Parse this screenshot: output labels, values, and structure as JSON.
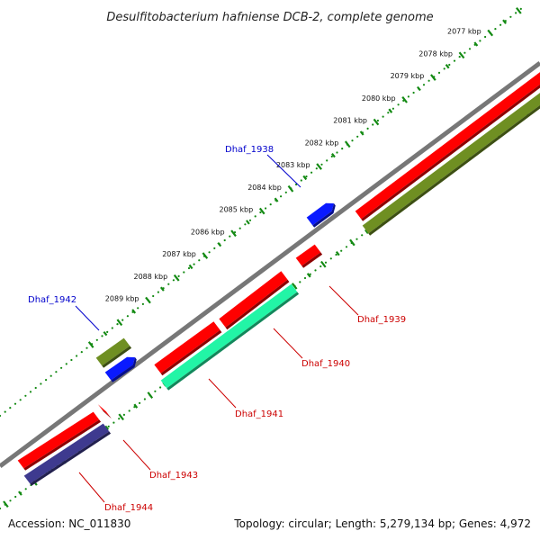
{
  "title": "Desulfitobacterium hafniense DCB-2, complete genome",
  "accession": "Accession: NC_011830",
  "topology": "Topology: circular; Length: 5,279,134 bp; Genes: 4,972",
  "colors": {
    "backbone": "#777777",
    "scale": "#138a13",
    "red": "#ff0000",
    "olive": "#6f8f22",
    "blue": "#0a1aff",
    "teal": "#22f5a6",
    "navy": "#3e3a8f",
    "label_blue": "#0000cc",
    "label_red": "#cc0000"
  },
  "scale_ticks": [
    {
      "label": "2077 kbp",
      "pos": 2077
    },
    {
      "label": "2078 kbp",
      "pos": 2078
    },
    {
      "label": "2079 kbp",
      "pos": 2079
    },
    {
      "label": "2080 kbp",
      "pos": 2080
    },
    {
      "label": "2081 kbp",
      "pos": 2081
    },
    {
      "label": "2082 kbp",
      "pos": 2082
    },
    {
      "label": "2083 kbp",
      "pos": 2083
    },
    {
      "label": "2084 kbp",
      "pos": 2084
    },
    {
      "label": "2085 kbp",
      "pos": 2085
    },
    {
      "label": "2086 kbp",
      "pos": 2086
    },
    {
      "label": "2087 kbp",
      "pos": 2087
    },
    {
      "label": "2088 kbp",
      "pos": 2088
    },
    {
      "label": "2089 kbp",
      "pos": 2089
    }
  ],
  "gene_labels": {
    "dhaf_1938": "Dhaf_1938",
    "dhaf_1939": "Dhaf_1939",
    "dhaf_1940": "Dhaf_1940",
    "dhaf_1941": "Dhaf_1941",
    "dhaf_1942": "Dhaf_1942",
    "dhaf_1943": "Dhaf_1943",
    "dhaf_1944": "Dhaf_1944"
  }
}
